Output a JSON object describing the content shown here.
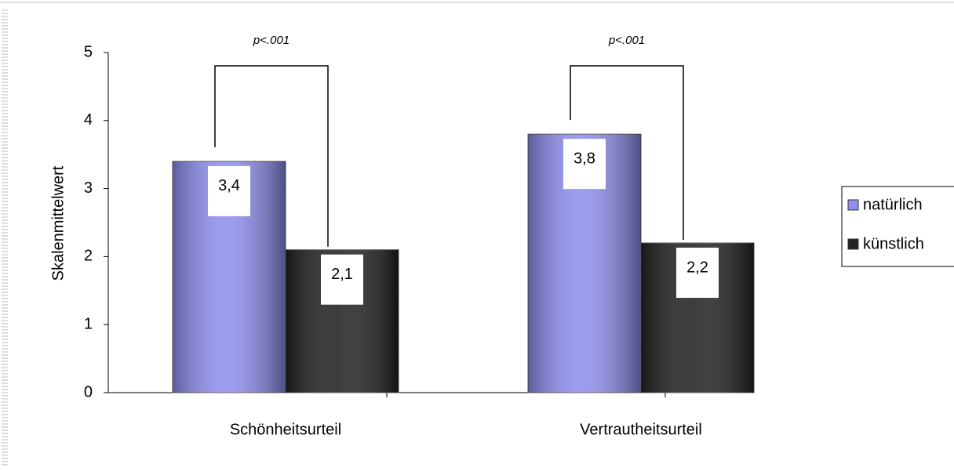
{
  "chart_data": {
    "type": "bar",
    "y_label": "Skalenmittelwert",
    "categories": [
      "Schönheitsurteil",
      "Vertrautheitsurteil"
    ],
    "series": [
      {
        "name": "natürlich",
        "color": "#8f8ff0",
        "values": [
          3.4,
          3.8
        ],
        "value_labels": [
          "3,4",
          "3,8"
        ]
      },
      {
        "name": "künstlich",
        "color": "#222222",
        "values": [
          2.1,
          2.2
        ],
        "value_labels": [
          "2,1",
          "2,2"
        ]
      }
    ],
    "annotations": [
      "p<.001",
      "p<.001"
    ],
    "ylim": [
      0,
      5
    ],
    "yticks": [
      0,
      1,
      2,
      3,
      4,
      5
    ],
    "grid": false,
    "legend": "right"
  }
}
